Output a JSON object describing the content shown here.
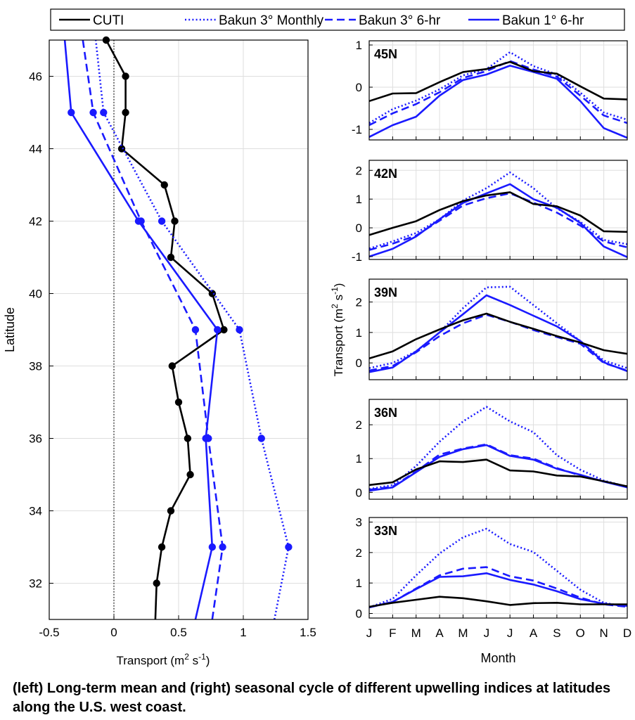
{
  "caption": "(left) Long-term mean and (right) seasonal cycle of different upwelling indices at latitudes along the U.S. west coast.",
  "legend": {
    "entries": [
      {
        "series": "CUTI",
        "label": "CUTI",
        "color": "#000000",
        "style": "solid"
      },
      {
        "series": "Bakun3_Monthly",
        "label": "Bakun 3° Monthly",
        "color": "#1a1aff",
        "style": "dotted"
      },
      {
        "series": "Bakun3_6hr",
        "label": "Bakun 3° 6-hr",
        "color": "#1a1aff",
        "style": "dashed"
      },
      {
        "series": "Bakun1_6hr",
        "label": "Bakun 1° 6-hr",
        "color": "#1a1aff",
        "style": "solid"
      }
    ]
  },
  "chart_data": [
    {
      "id": "left",
      "type": "line",
      "orientation": "vertical-profile",
      "xlabel": "Transport (m² s⁻¹)",
      "ylabel": "Latitude",
      "xlim": [
        -0.5,
        1.5
      ],
      "ylim": [
        31,
        47
      ],
      "xticks": [
        -0.5,
        0,
        0.5,
        1,
        1.5
      ],
      "xtick_labels": [
        "-0.5",
        "0",
        "0.5",
        "1",
        "1.5"
      ],
      "yticks": [
        32,
        34,
        36,
        38,
        40,
        42,
        44,
        46
      ],
      "ytick_labels": [
        "32",
        "34",
        "36",
        "38",
        "40",
        "42",
        "44",
        "46"
      ],
      "grid": true,
      "zero_line": 0,
      "series": [
        {
          "key": "CUTI",
          "markers": true,
          "x": [
            0.32,
            0.33,
            0.37,
            0.44,
            0.59,
            0.57,
            0.5,
            0.45,
            0.85,
            0.76,
            0.44,
            0.47,
            0.39,
            0.06,
            0.09,
            0.09,
            -0.06
          ],
          "y": [
            31,
            32,
            33,
            34,
            35,
            36,
            37,
            38,
            39,
            40,
            41,
            42,
            43,
            44,
            45,
            46,
            47
          ]
        },
        {
          "key": "Bakun3_Monthly",
          "markers": true,
          "x": [
            1.24,
            1.35,
            1.14,
            0.97,
            0.37,
            -0.08,
            -0.14
          ],
          "y": [
            31,
            33,
            36,
            39,
            42,
            45,
            47
          ]
        },
        {
          "key": "Bakun3_6hr",
          "markers": true,
          "x": [
            0.76,
            0.84,
            0.73,
            0.63,
            0.21,
            -0.16,
            -0.24
          ],
          "y": [
            31,
            33,
            36,
            39,
            42,
            45,
            47
          ]
        },
        {
          "key": "Bakun1_6hr",
          "markers": true,
          "x": [
            0.63,
            0.76,
            0.71,
            0.8,
            0.19,
            -0.33,
            -0.38
          ],
          "y": [
            31,
            33,
            36,
            39,
            42,
            45,
            47
          ]
        }
      ]
    },
    {
      "id": "45N",
      "type": "line",
      "title": "45N",
      "categories": [
        "J",
        "F",
        "M",
        "A",
        "M",
        "J",
        "J",
        "A",
        "S",
        "O",
        "N",
        "D"
      ],
      "ylim": [
        -1.25,
        1.1
      ],
      "yticks": [
        -1,
        0,
        1
      ],
      "ytick_labels": [
        "-1",
        "0",
        "1"
      ],
      "grid": true,
      "series": [
        {
          "key": "CUTI",
          "values": [
            -0.33,
            -0.15,
            -0.14,
            0.12,
            0.36,
            0.43,
            0.6,
            0.38,
            0.32,
            0.02,
            -0.27,
            -0.29
          ]
        },
        {
          "key": "Bakun3_Monthly",
          "values": [
            -0.85,
            -0.52,
            -0.32,
            -0.05,
            0.28,
            0.43,
            0.83,
            0.5,
            0.3,
            -0.13,
            -0.6,
            -0.77
          ]
        },
        {
          "key": "Bakun3_6hr",
          "values": [
            -0.9,
            -0.62,
            -0.4,
            -0.12,
            0.22,
            0.38,
            0.62,
            0.42,
            0.25,
            -0.2,
            -0.67,
            -0.85
          ]
        },
        {
          "key": "Bakun1_6hr",
          "values": [
            -1.18,
            -0.9,
            -0.7,
            -0.2,
            0.17,
            0.3,
            0.51,
            0.36,
            0.2,
            -0.33,
            -0.97,
            -1.2
          ]
        }
      ]
    },
    {
      "id": "42N",
      "type": "line",
      "title": "42N",
      "categories": [
        "J",
        "F",
        "M",
        "A",
        "M",
        "J",
        "J",
        "A",
        "S",
        "O",
        "N",
        "D"
      ],
      "ylim": [
        -1.1,
        2.35
      ],
      "yticks": [
        -1,
        0,
        1,
        2
      ],
      "ytick_labels": [
        "-1",
        "0",
        "1",
        "2"
      ],
      "grid": true,
      "series": [
        {
          "key": "CUTI",
          "values": [
            -0.25,
            0.0,
            0.23,
            0.62,
            0.93,
            1.13,
            1.24,
            0.83,
            0.75,
            0.43,
            -0.12,
            -0.14
          ]
        },
        {
          "key": "Bakun3_Monthly",
          "values": [
            -0.72,
            -0.47,
            -0.18,
            0.3,
            0.95,
            1.38,
            1.93,
            1.38,
            0.68,
            0.21,
            -0.42,
            -0.57
          ]
        },
        {
          "key": "Bakun3_6hr",
          "values": [
            -0.77,
            -0.55,
            -0.27,
            0.25,
            0.78,
            1.03,
            1.2,
            0.88,
            0.53,
            0.08,
            -0.47,
            -0.68
          ]
        },
        {
          "key": "Bakun1_6hr",
          "values": [
            -1.0,
            -0.73,
            -0.3,
            0.3,
            0.87,
            1.2,
            1.52,
            1.0,
            0.7,
            0.17,
            -0.65,
            -1.02
          ]
        }
      ]
    },
    {
      "id": "39N",
      "type": "line",
      "title": "39N",
      "categories": [
        "J",
        "F",
        "M",
        "A",
        "M",
        "J",
        "J",
        "A",
        "S",
        "O",
        "N",
        "D"
      ],
      "ylim": [
        -0.55,
        2.75
      ],
      "yticks": [
        0,
        1,
        2
      ],
      "ytick_labels": [
        "0",
        "1",
        "2"
      ],
      "grid": true,
      "series": [
        {
          "key": "CUTI",
          "values": [
            0.15,
            0.38,
            0.78,
            1.1,
            1.4,
            1.62,
            1.35,
            1.12,
            0.88,
            0.67,
            0.42,
            0.3
          ]
        },
        {
          "key": "Bakun3_Monthly",
          "values": [
            -0.17,
            0.0,
            0.38,
            1.0,
            1.8,
            2.48,
            2.5,
            1.9,
            1.3,
            0.72,
            0.08,
            -0.17
          ]
        },
        {
          "key": "Bakun3_6hr",
          "values": [
            -0.25,
            -0.1,
            0.35,
            0.88,
            1.3,
            1.58,
            1.35,
            1.08,
            0.85,
            0.63,
            0.0,
            -0.25
          ]
        },
        {
          "key": "Bakun1_6hr",
          "values": [
            -0.3,
            -0.15,
            0.38,
            1.0,
            1.6,
            2.22,
            1.9,
            1.55,
            1.2,
            0.72,
            0.02,
            -0.27
          ]
        }
      ]
    },
    {
      "id": "36N",
      "type": "line",
      "title": "36N",
      "categories": [
        "J",
        "F",
        "M",
        "A",
        "M",
        "J",
        "J",
        "A",
        "S",
        "O",
        "N",
        "D"
      ],
      "ylim": [
        -0.2,
        2.75
      ],
      "yticks": [
        0,
        1,
        2
      ],
      "ytick_labels": [
        "0",
        "1",
        "2"
      ],
      "grid": true,
      "series": [
        {
          "key": "CUTI",
          "values": [
            0.22,
            0.3,
            0.68,
            0.92,
            0.9,
            0.97,
            0.65,
            0.62,
            0.5,
            0.47,
            0.33,
            0.18
          ]
        },
        {
          "key": "Bakun3_Monthly",
          "values": [
            0.1,
            0.22,
            0.78,
            1.5,
            2.1,
            2.53,
            2.1,
            1.78,
            1.1,
            0.67,
            0.35,
            0.17
          ]
        },
        {
          "key": "Bakun3_6hr",
          "values": [
            0.08,
            0.17,
            0.62,
            1.12,
            1.3,
            1.42,
            1.1,
            1.0,
            0.72,
            0.5,
            0.33,
            0.17
          ]
        },
        {
          "key": "Bakun1_6hr",
          "values": [
            0.05,
            0.15,
            0.6,
            1.05,
            1.28,
            1.4,
            1.08,
            0.97,
            0.7,
            0.52,
            0.32,
            0.15
          ]
        }
      ]
    },
    {
      "id": "33N",
      "type": "line",
      "title": "33N",
      "categories": [
        "J",
        "F",
        "M",
        "A",
        "M",
        "J",
        "J",
        "A",
        "S",
        "O",
        "N",
        "D"
      ],
      "ylim": [
        -0.15,
        3.15
      ],
      "yticks": [
        0,
        1,
        2,
        3
      ],
      "ytick_labels": [
        "0",
        "1",
        "2",
        "3"
      ],
      "grid": true,
      "series": [
        {
          "key": "CUTI",
          "values": [
            0.22,
            0.35,
            0.45,
            0.55,
            0.5,
            0.4,
            0.28,
            0.34,
            0.35,
            0.3,
            0.3,
            0.3
          ]
        },
        {
          "key": "Bakun3_Monthly",
          "values": [
            0.2,
            0.48,
            1.25,
            1.97,
            2.5,
            2.78,
            2.28,
            2.02,
            1.4,
            0.78,
            0.35,
            0.22
          ]
        },
        {
          "key": "Bakun3_6hr",
          "values": [
            0.2,
            0.38,
            0.82,
            1.25,
            1.47,
            1.52,
            1.22,
            1.08,
            0.82,
            0.52,
            0.3,
            0.22
          ]
        },
        {
          "key": "Bakun1_6hr",
          "values": [
            0.2,
            0.38,
            0.8,
            1.2,
            1.22,
            1.32,
            1.1,
            0.95,
            0.73,
            0.47,
            0.32,
            0.25
          ]
        }
      ]
    }
  ],
  "right_axes": {
    "xlabel": "Month",
    "ylabel": "Transport (m² s⁻¹)"
  }
}
